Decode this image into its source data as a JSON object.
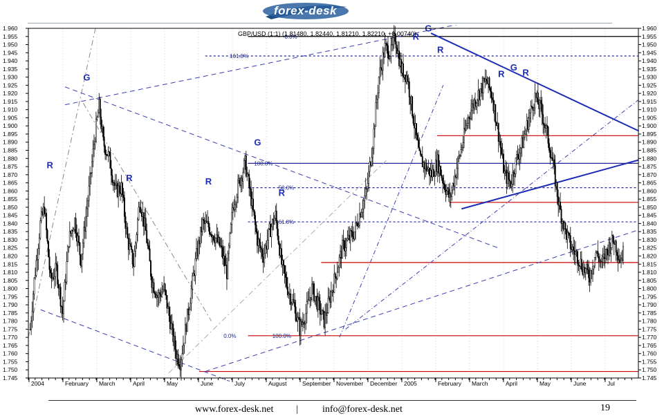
{
  "header": {
    "logo_text": "forex-desk"
  },
  "chart_data": {
    "type": "candlestick",
    "title": "GBP/USD (1:1) (1.81480, 1.82440, 1.81210, 1.82210, +0.00740)",
    "symbol": "GBP/USD",
    "last_ohlc": {
      "open": 1.8148,
      "high": 1.8244,
      "low": 1.8121,
      "close": 1.8221,
      "change": 0.0074
    },
    "ylim": [
      1.745,
      1.96
    ],
    "y_tick_step": 0.005,
    "x_tick_labels": [
      "2004",
      "February",
      "March",
      "April",
      "May",
      "June",
      "July",
      "August",
      "September",
      "November",
      "December",
      "2005",
      "February",
      "March",
      "April",
      "May",
      "June",
      "Jul"
    ],
    "price_path": [
      [
        0,
        1.775
      ],
      [
        4,
        1.805
      ],
      [
        10,
        1.84
      ],
      [
        14,
        1.85
      ],
      [
        20,
        1.805
      ],
      [
        26,
        1.812
      ],
      [
        32,
        1.785
      ],
      [
        38,
        1.83
      ],
      [
        44,
        1.842
      ],
      [
        50,
        1.818
      ],
      [
        58,
        1.86
      ],
      [
        64,
        1.895
      ],
      [
        68,
        1.912
      ],
      [
        72,
        1.89
      ],
      [
        78,
        1.88
      ],
      [
        84,
        1.86
      ],
      [
        90,
        1.862
      ],
      [
        96,
        1.83
      ],
      [
        102,
        1.815
      ],
      [
        108,
        1.855
      ],
      [
        114,
        1.835
      ],
      [
        120,
        1.805
      ],
      [
        126,
        1.795
      ],
      [
        132,
        1.8
      ],
      [
        138,
        1.78
      ],
      [
        144,
        1.76
      ],
      [
        148,
        1.755
      ],
      [
        152,
        1.77
      ],
      [
        158,
        1.795
      ],
      [
        164,
        1.82
      ],
      [
        170,
        1.84
      ],
      [
        176,
        1.838
      ],
      [
        182,
        1.832
      ],
      [
        188,
        1.825
      ],
      [
        194,
        1.81
      ],
      [
        200,
        1.85
      ],
      [
        206,
        1.865
      ],
      [
        212,
        1.877
      ],
      [
        218,
        1.855
      ],
      [
        224,
        1.83
      ],
      [
        230,
        1.82
      ],
      [
        236,
        1.835
      ],
      [
        242,
        1.845
      ],
      [
        248,
        1.815
      ],
      [
        254,
        1.8
      ],
      [
        260,
        1.79
      ],
      [
        266,
        1.775
      ],
      [
        272,
        1.785
      ],
      [
        278,
        1.8
      ],
      [
        284,
        1.79
      ],
      [
        290,
        1.78
      ],
      [
        296,
        1.795
      ],
      [
        302,
        1.81
      ],
      [
        308,
        1.825
      ],
      [
        314,
        1.83
      ],
      [
        320,
        1.835
      ],
      [
        326,
        1.848
      ],
      [
        332,
        1.86
      ],
      [
        338,
        1.89
      ],
      [
        344,
        1.93
      ],
      [
        350,
        1.948
      ],
      [
        356,
        1.945
      ],
      [
        360,
        1.955
      ],
      [
        366,
        1.935
      ],
      [
        372,
        1.93
      ],
      [
        378,
        1.905
      ],
      [
        384,
        1.88
      ],
      [
        390,
        1.875
      ],
      [
        396,
        1.87
      ],
      [
        402,
        1.878
      ],
      [
        408,
        1.865
      ],
      [
        414,
        1.855
      ],
      [
        420,
        1.872
      ],
      [
        426,
        1.888
      ],
      [
        432,
        1.905
      ],
      [
        438,
        1.915
      ],
      [
        444,
        1.922
      ],
      [
        450,
        1.928
      ],
      [
        456,
        1.918
      ],
      [
        462,
        1.895
      ],
      [
        468,
        1.87
      ],
      [
        474,
        1.865
      ],
      [
        480,
        1.88
      ],
      [
        486,
        1.89
      ],
      [
        492,
        1.905
      ],
      [
        498,
        1.918
      ],
      [
        504,
        1.91
      ],
      [
        510,
        1.895
      ],
      [
        516,
        1.875
      ],
      [
        522,
        1.85
      ],
      [
        528,
        1.835
      ],
      [
        534,
        1.825
      ],
      [
        540,
        1.82
      ],
      [
        546,
        1.812
      ],
      [
        552,
        1.808
      ],
      [
        558,
        1.822
      ],
      [
        564,
        1.815
      ],
      [
        570,
        1.825
      ],
      [
        576,
        1.83
      ],
      [
        582,
        1.818
      ],
      [
        585,
        1.822
      ]
    ],
    "fib_levels": [
      {
        "label": "0.0%",
        "value": 1.955
      },
      {
        "label": "161.8%",
        "value": 1.943
      },
      {
        "label": "100.0%",
        "value": 1.877
      },
      {
        "label": "50.0%",
        "value": 1.862
      },
      {
        "label": "61.8%",
        "value": 1.841
      },
      {
        "label": "0.0%",
        "value": 1.771
      },
      {
        "label": "100.0%",
        "value": 1.771
      }
    ],
    "horizontal_lines": [
      {
        "value": 1.955,
        "color": "#000000",
        "start": 0.36,
        "end": 1.0
      },
      {
        "value": 1.943,
        "color": "#2222aa",
        "start": 0.29,
        "end": 1.0,
        "dash": true
      },
      {
        "value": 1.894,
        "color": "#cc0000",
        "start": 0.67,
        "end": 1.0
      },
      {
        "value": 1.877,
        "color": "#22229a",
        "start": 0.36,
        "end": 1.0
      },
      {
        "value": 1.862,
        "color": "#2222aa",
        "start": 0.36,
        "end": 1.0,
        "dash": true
      },
      {
        "value": 1.853,
        "color": "#cc0000",
        "start": 0.69,
        "end": 1.0
      },
      {
        "value": 1.841,
        "color": "#2222aa",
        "start": 0.36,
        "end": 1.0,
        "dash": true
      },
      {
        "value": 1.816,
        "color": "#cc0000",
        "start": 0.48,
        "end": 1.0
      },
      {
        "value": 1.771,
        "color": "#cc0000",
        "start": 0.36,
        "end": 1.0
      },
      {
        "value": 1.749,
        "color": "#cc0000",
        "start": 0.28,
        "end": 1.0
      }
    ],
    "trend_lines": [
      {
        "from": [
          0.06,
          1.913
        ],
        "to": [
          0.79,
          1.969
        ],
        "color": "#3b3fb0",
        "dash": "7,5"
      },
      {
        "from": [
          0.06,
          1.924
        ],
        "to": [
          0.77,
          1.825
        ],
        "color": "#3b3fb0",
        "dash": "7,5"
      },
      {
        "from": [
          0.02,
          1.787
        ],
        "to": [
          0.33,
          1.743
        ],
        "color": "#3b3fb0",
        "dash": "7,5"
      },
      {
        "from": [
          0.29,
          1.749
        ],
        "to": [
          1.0,
          1.836
        ],
        "color": "#3b3fb0",
        "dash": "7,5"
      },
      {
        "from": [
          0.66,
          1.957
        ],
        "to": [
          1.0,
          1.897
        ],
        "color": "#1c2cb4",
        "width": 2
      },
      {
        "from": [
          0.71,
          1.849
        ],
        "to": [
          1.0,
          1.879
        ],
        "color": "#1c2cb4",
        "width": 2
      },
      {
        "from": [
          0.51,
          1.77
        ],
        "to": [
          0.68,
          1.925
        ],
        "color": "#3b3fb0",
        "dash": "6,3,1,3"
      },
      {
        "from": [
          0.52,
          1.775
        ],
        "to": [
          1.0,
          1.916
        ],
        "color": "#3b3fb0",
        "dash": "6,3,1,3"
      },
      {
        "from": [
          0.0,
          1.77
        ],
        "to": [
          0.11,
          1.96
        ],
        "color": "#888888",
        "dash": "8,4,2,4"
      },
      {
        "from": [
          0.09,
          1.914
        ],
        "to": [
          0.3,
          1.78
        ],
        "color": "#888888",
        "dash": "8,4,2,4"
      },
      {
        "from": [
          0.23,
          1.748
        ],
        "to": [
          0.59,
          1.88
        ],
        "color": "#aaaaaa",
        "dash": "8,4,2,4"
      }
    ],
    "pattern_labels": [
      {
        "text": "G",
        "x": 0.09,
        "y": 1.928
      },
      {
        "text": "R",
        "x": 0.03,
        "y": 1.874
      },
      {
        "text": "R",
        "x": 0.16,
        "y": 1.866
      },
      {
        "text": "R",
        "x": 0.29,
        "y": 1.864
      },
      {
        "text": "G",
        "x": 0.37,
        "y": 1.888
      },
      {
        "text": "R",
        "x": 0.41,
        "y": 1.857
      },
      {
        "text": "R",
        "x": 0.63,
        "y": 1.953
      },
      {
        "text": "G",
        "x": 0.65,
        "y": 1.958
      },
      {
        "text": "R",
        "x": 0.67,
        "y": 1.945
      },
      {
        "text": "R",
        "x": 0.77,
        "y": 1.93
      },
      {
        "text": "G",
        "x": 0.79,
        "y": 1.934
      },
      {
        "text": "R",
        "x": 0.81,
        "y": 1.931
      }
    ]
  },
  "footer": {
    "site": "www.forex-desk.net",
    "separator": "|",
    "email": "info@forex-desk.net",
    "page_number": "19"
  }
}
